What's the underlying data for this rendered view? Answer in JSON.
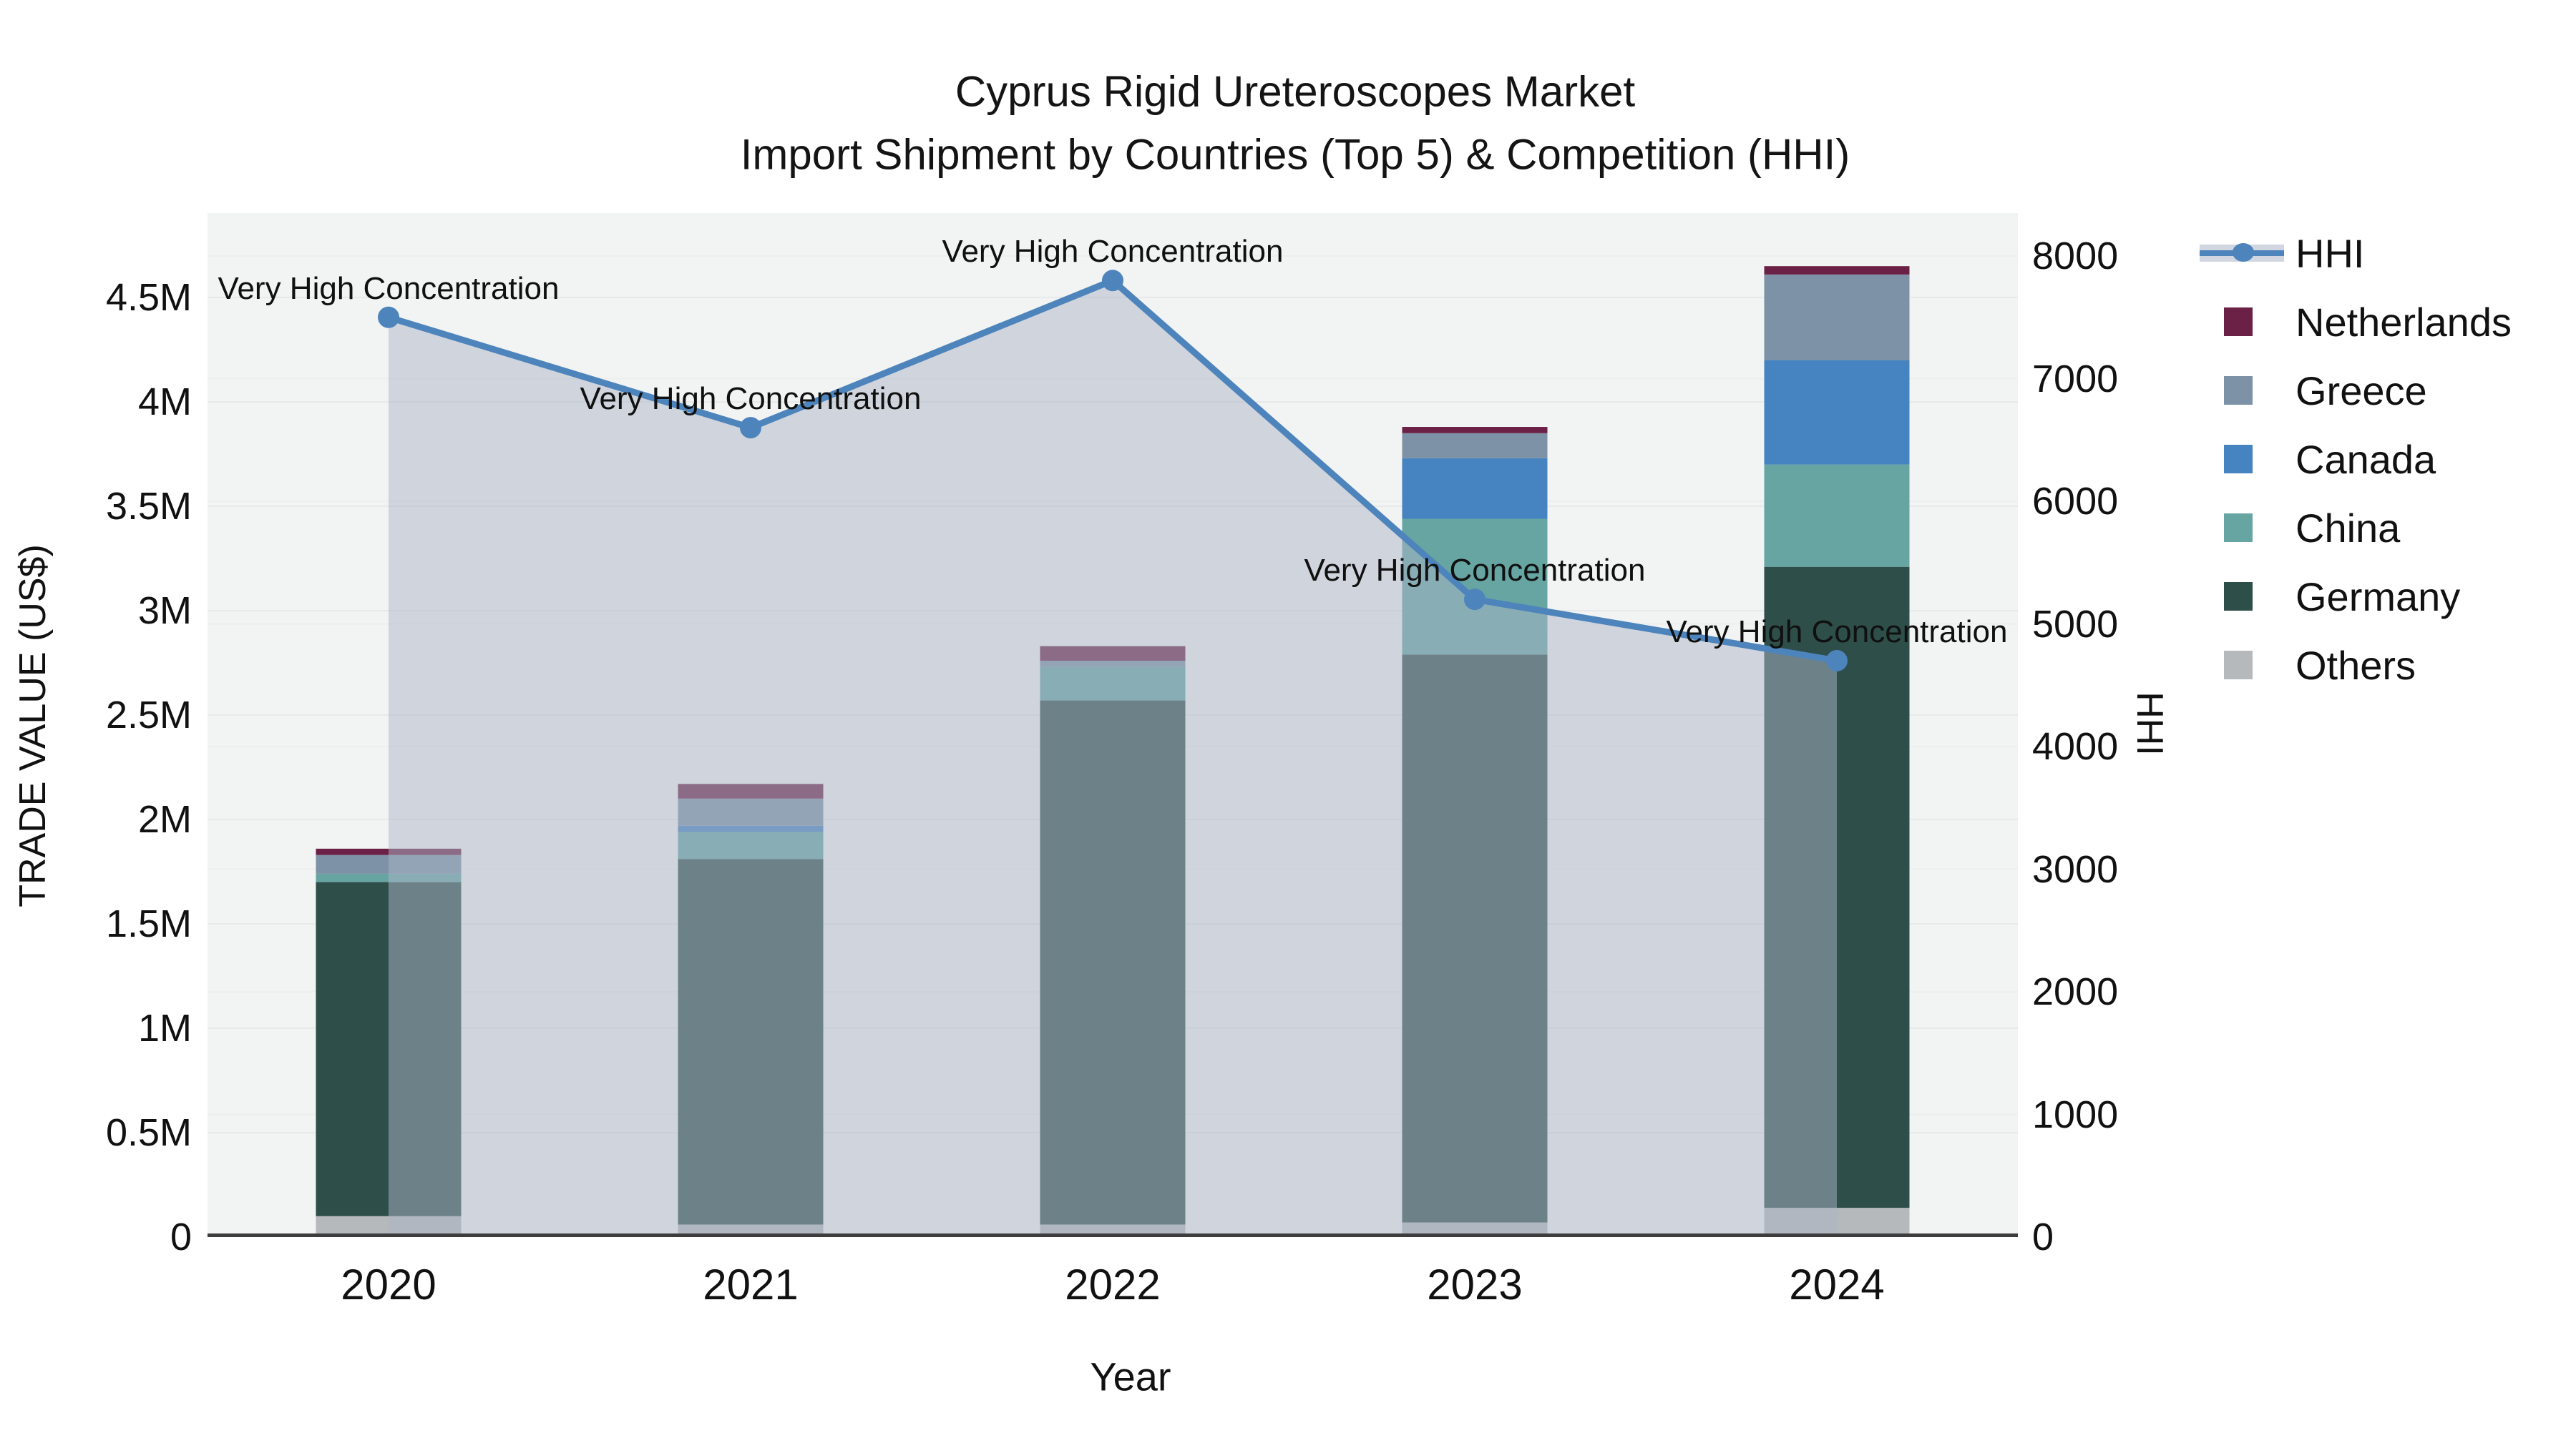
{
  "title": {
    "line1": "Cyprus Rigid Ureteroscopes Market",
    "line2": "Import Shipment by Countries (Top 5) & Competition (HHI)"
  },
  "chart_data": {
    "type": "bar",
    "stacked": true,
    "secondary_line": true,
    "categories": [
      "2020",
      "2021",
      "2022",
      "2023",
      "2024"
    ],
    "series": [
      {
        "name": "Others",
        "color": "#b6b9bb",
        "values_musd": [
          0.1,
          0.06,
          0.06,
          0.07,
          0.14
        ]
      },
      {
        "name": "Germany",
        "color": "#2e4e49",
        "values_musd": [
          1.6,
          1.75,
          2.51,
          2.72,
          3.07
        ]
      },
      {
        "name": "China",
        "color": "#66a5a2",
        "values_musd": [
          0.04,
          0.13,
          0.16,
          0.65,
          0.49
        ]
      },
      {
        "name": "Canada",
        "color": "#4583c1",
        "values_musd": [
          0.0,
          0.03,
          0.0,
          0.29,
          0.5
        ]
      },
      {
        "name": "Greece",
        "color": "#7d92a6",
        "values_musd": [
          0.09,
          0.13,
          0.03,
          0.12,
          0.41
        ]
      },
      {
        "name": "Netherlands",
        "color": "#6b2045",
        "values_musd": [
          0.03,
          0.07,
          0.07,
          0.03,
          0.04
        ]
      }
    ],
    "line": {
      "name": "HHI",
      "color": "#4d84bc",
      "fill_color": "rgba(171,181,199,0.5)",
      "axis": "right",
      "values": [
        7500,
        6600,
        7800,
        5200,
        4700
      ]
    },
    "annotations": [
      "Very High Concentration",
      "Very High Concentration",
      "Very High Concentration",
      "Very High Concentration",
      "Very High Concentration"
    ],
    "left_axis": {
      "title": "TRADE VALUE (US$)",
      "ticks": [
        {
          "value": 0,
          "label": "0"
        },
        {
          "value": 0.5,
          "label": "0.5M"
        },
        {
          "value": 1,
          "label": "1M"
        },
        {
          "value": 1.5,
          "label": "1.5M"
        },
        {
          "value": 2,
          "label": "2M"
        },
        {
          "value": 2.5,
          "label": "2.5M"
        },
        {
          "value": 3,
          "label": "3M"
        },
        {
          "value": 3.5,
          "label": "3.5M"
        },
        {
          "value": 4,
          "label": "4M"
        },
        {
          "value": 4.5,
          "label": "4.5M"
        }
      ],
      "range_max_musd": 4.9
    },
    "right_axis": {
      "title": "HHI",
      "ticks": [
        {
          "value": 0,
          "label": "0"
        },
        {
          "value": 1000,
          "label": "1000"
        },
        {
          "value": 2000,
          "label": "2000"
        },
        {
          "value": 3000,
          "label": "3000"
        },
        {
          "value": 4000,
          "label": "4000"
        },
        {
          "value": 5000,
          "label": "5000"
        },
        {
          "value": 6000,
          "label": "6000"
        },
        {
          "value": 7000,
          "label": "7000"
        },
        {
          "value": 8000,
          "label": "8000"
        }
      ],
      "range_max": 8350
    },
    "x_axis": {
      "title": "Year"
    },
    "legend_order": [
      "HHI",
      "Netherlands",
      "Greece",
      "Canada",
      "China",
      "Germany",
      "Others"
    ],
    "grid": true,
    "legend_position": "right",
    "colors": {
      "plot_background": "#f2f3f3",
      "gridline": "#e7e9ea",
      "axis_line": "#3d3d3d"
    }
  }
}
